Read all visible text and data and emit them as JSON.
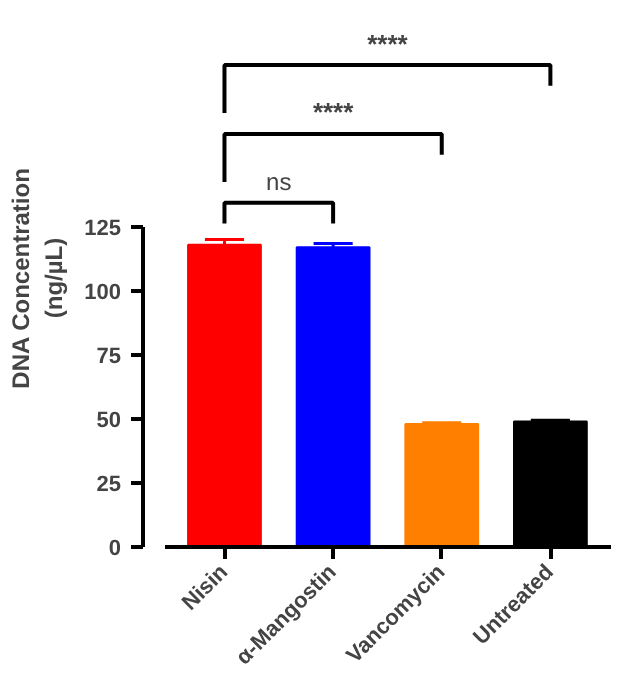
{
  "chart_data": {
    "type": "bar",
    "ylabel": "DNA Concentration\n(ng/µL)",
    "categories": [
      "Nisin",
      "α-Mangostin",
      "Vancomycin",
      "Untreated"
    ],
    "values": [
      118,
      117,
      48,
      49
    ],
    "colors": [
      "#ff0000",
      "#0000ff",
      "#ff8000",
      "#000000"
    ],
    "errors": [
      [
        118,
        120
      ],
      [
        117,
        118.5
      ],
      [
        48,
        48.5
      ],
      [
        49,
        49.5
      ]
    ],
    "ylim": [
      0,
      125
    ],
    "yticks": [
      0,
      25,
      50,
      75,
      100,
      125
    ],
    "grid": false,
    "annotations": [
      "ns",
      "****",
      "****"
    ]
  }
}
